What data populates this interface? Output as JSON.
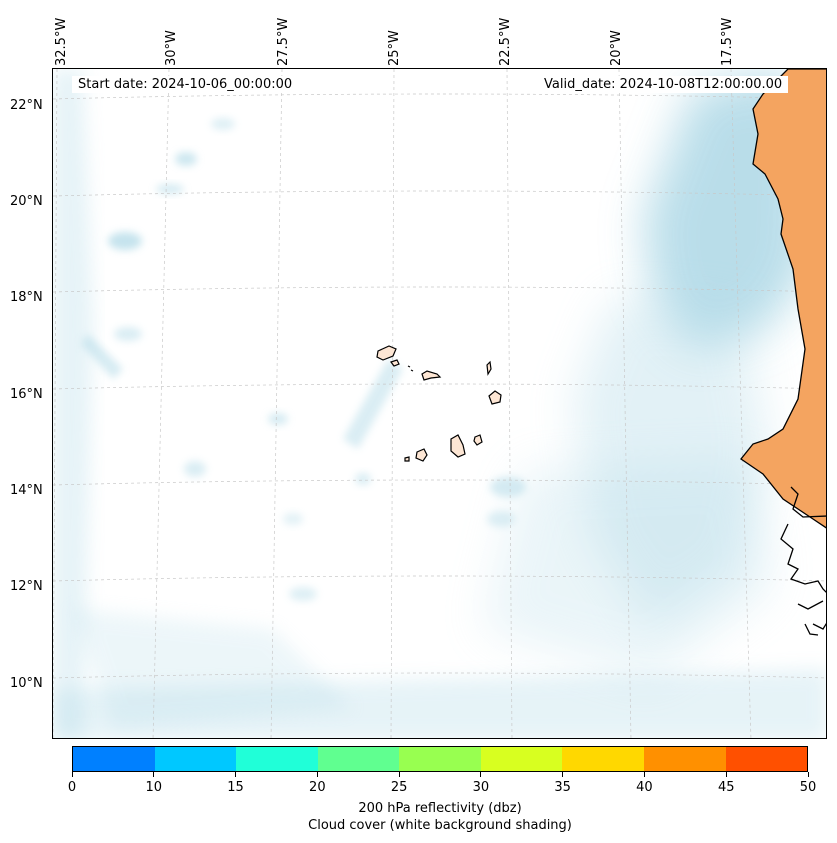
{
  "map": {
    "start_date_text": "Start date: 2024-10-06_00:00:00",
    "valid_date_text": "Valid_date: 2024-10-08T12:00:00.00",
    "longitude_labels": [
      "32.5°W",
      "30°W",
      "27.5°W",
      "25°W",
      "22.5°W",
      "20°W",
      "17.5°W"
    ],
    "latitude_labels": [
      "22°N",
      "20°N",
      "18°N",
      "16°N",
      "14°N",
      "12°N",
      "10°N"
    ],
    "colors": {
      "cloud": "#add8e6",
      "land": "#f4a460",
      "island_fill": "#fde6d4",
      "coastline": "#000000",
      "gridline": "#c8c8c8"
    }
  },
  "colorbar": {
    "tick_labels": [
      "0",
      "10",
      "15",
      "20",
      "25",
      "30",
      "35",
      "40",
      "45",
      "50"
    ],
    "colors": [
      "#0080ff",
      "#00c8ff",
      "#20ffd8",
      "#60ff90",
      "#98ff50",
      "#d8ff20",
      "#ffd800",
      "#ff9000",
      "#ff5000"
    ],
    "label_line1": "200 hPa reflectivity (dbz)",
    "label_line2": "Cloud cover (white background shading)"
  }
}
